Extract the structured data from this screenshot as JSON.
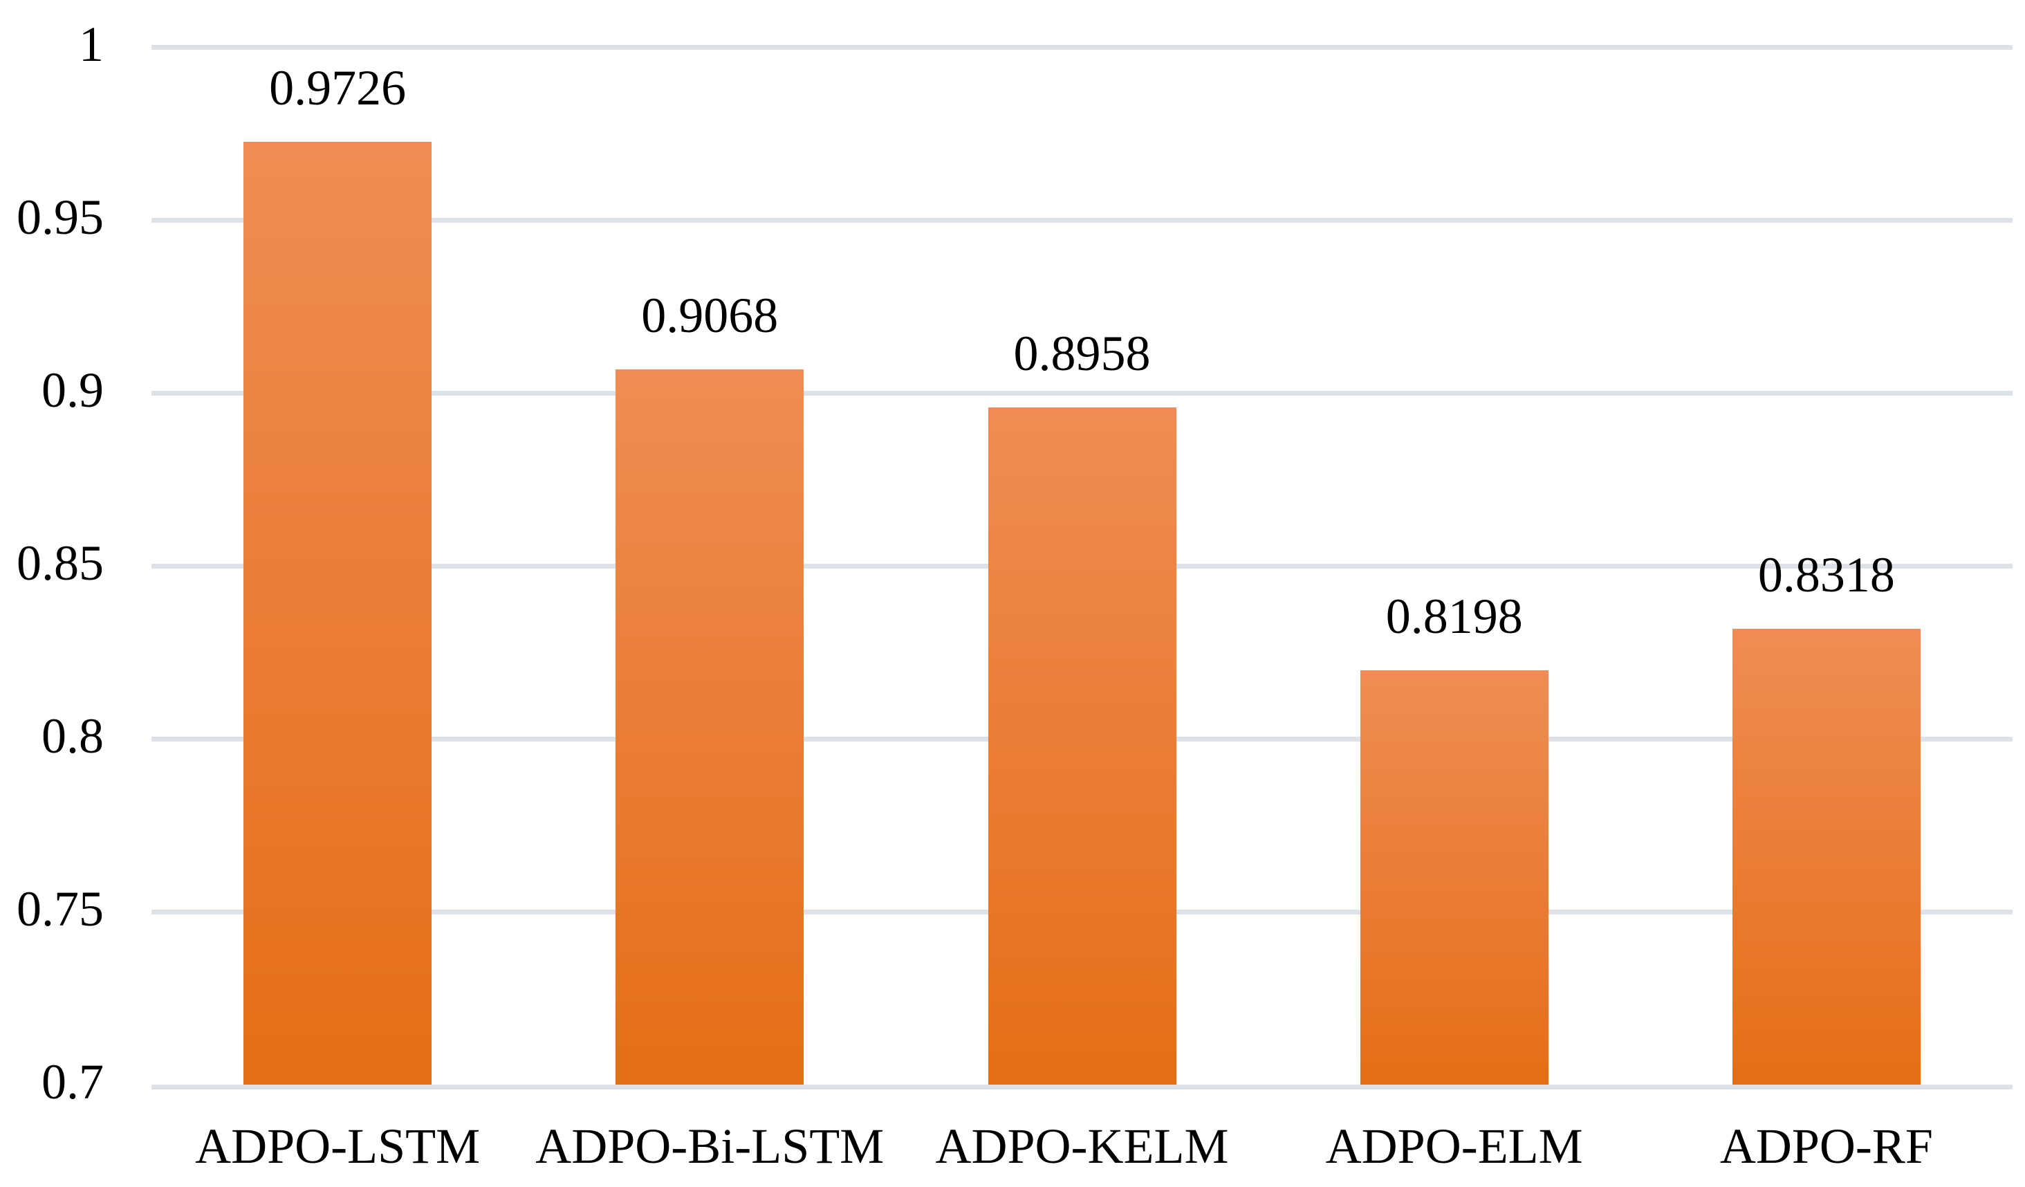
{
  "chart_data": {
    "type": "bar",
    "title": "",
    "xlabel": "",
    "ylabel": "",
    "categories": [
      "ADPO-LSTM",
      "ADPO-Bi-LSTM",
      "ADPO-KELM",
      "ADPO-ELM",
      "ADPO-RF"
    ],
    "values": [
      0.9726,
      0.9068,
      0.8958,
      0.8198,
      0.8318
    ],
    "value_labels": [
      "0.9726",
      "0.9068",
      "0.8958",
      "0.8198",
      "0.8318"
    ],
    "ylim": [
      0.7,
      1.0
    ],
    "ytick_values": [
      1,
      0.95,
      0.9,
      0.85,
      0.8,
      0.75,
      0.7
    ],
    "ytick_labels": [
      "1",
      "0.95",
      "0.9",
      "0.85",
      "0.8",
      "0.75",
      "0.7"
    ],
    "grid": true,
    "legend": false,
    "colors": {
      "bar_gradient_top": "#F08C54",
      "bar_gradient_bottom": "#E46E16",
      "gridline": "#DDE1E8",
      "text": "#000000",
      "background": "#FFFFFF"
    }
  }
}
